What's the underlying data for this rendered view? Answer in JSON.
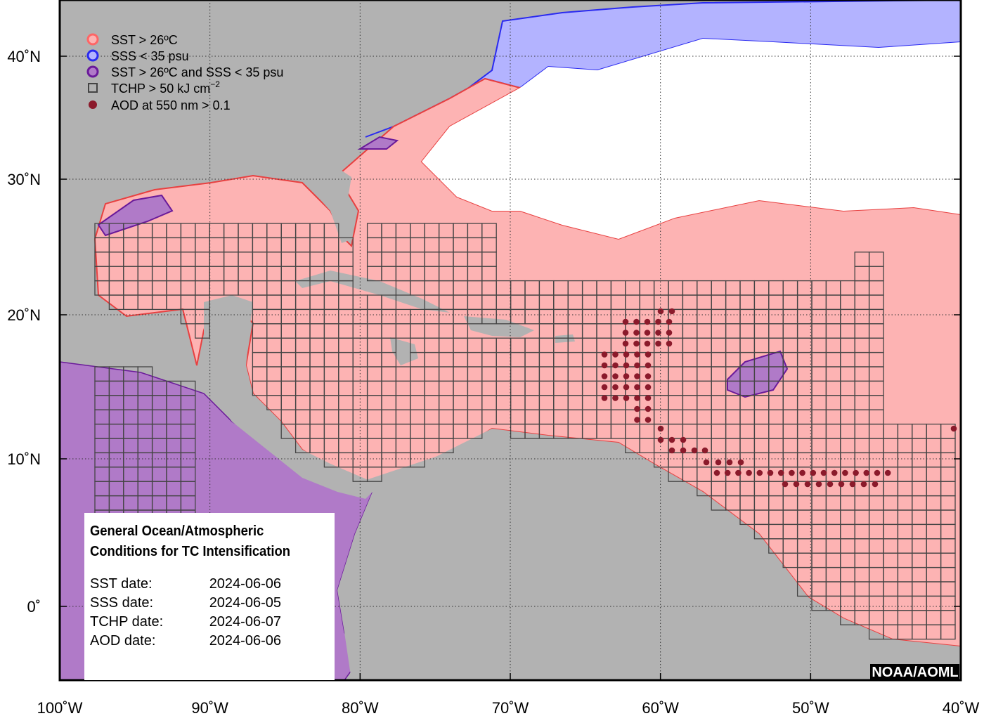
{
  "map": {
    "legend": [
      {
        "label": "SST > 26ºC"
      },
      {
        "label": "SSS < 35 psu"
      },
      {
        "label": "SST > 26ºC and SSS < 35 psu"
      },
      {
        "label": "TCHP > 50 kJ cm",
        "superscript": "−2"
      },
      {
        "label": "AOD at 550 nm > 0.1"
      }
    ],
    "info": {
      "title_lines": [
        "General Ocean/Atmospheric",
        "Conditions for TC Intensification"
      ],
      "dates": [
        {
          "label": "SST date:",
          "value": "2024-06-06"
        },
        {
          "label": "SSS date:",
          "value": "2024-06-05"
        },
        {
          "label": "TCHP date:",
          "value": "2024-06-07"
        },
        {
          "label": "AOD date:",
          "value": "2024-06-06"
        }
      ]
    },
    "credit": "NOAA/AOML",
    "xticks": [
      "100˚W",
      "90˚W",
      "80˚W",
      "70˚W",
      "60˚W",
      "50˚W",
      "40˚W"
    ],
    "yticks": [
      "40˚N",
      "30˚N",
      "20˚N",
      "10˚N",
      "0˚"
    ]
  }
}
